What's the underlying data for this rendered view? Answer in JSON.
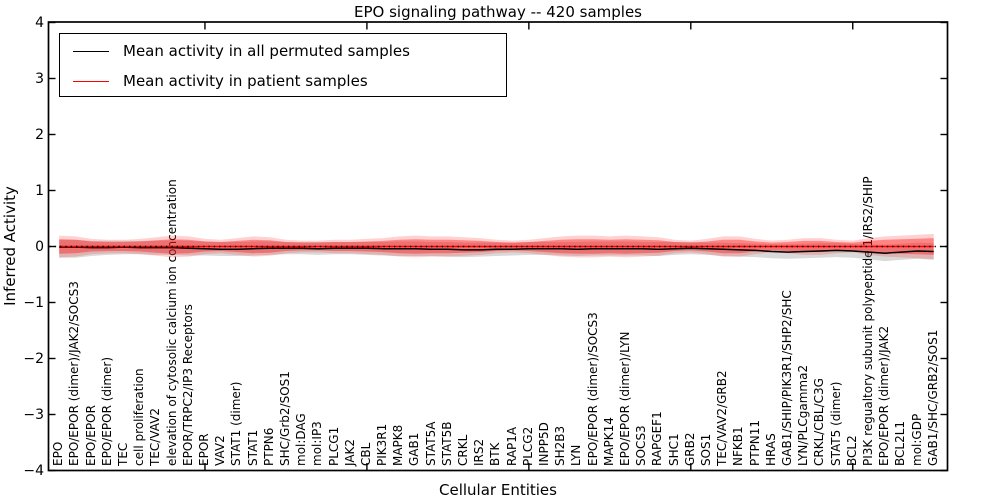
{
  "title": "EPO signaling pathway -- 420 samples",
  "axes": {
    "ylabel": "Inferred Activity",
    "xlabel": "Cellular Entities"
  },
  "legend": {
    "items": [
      {
        "label": "Mean activity in all permuted samples",
        "color": "#000000"
      },
      {
        "label": "Mean activity in patient samples",
        "color": "#ff0000"
      }
    ]
  },
  "colors": {
    "black_line": "#000000",
    "red_line": "#ff0000",
    "red_band": "rgba(255,0,0,0.36)",
    "red_band_outer": "rgba(255,0,0,0.18)",
    "gray_band": "rgba(130,130,130,0.30)",
    "zero_line": "#000000"
  },
  "chart_data": {
    "type": "line",
    "title": "EPO signaling pathway -- 420 samples",
    "xlabel": "Cellular Entities",
    "ylabel": "Inferred Activity",
    "ylim": [
      -4,
      4
    ],
    "yticks": [
      4,
      3,
      2,
      1,
      0,
      -1,
      -2,
      -3,
      -4
    ],
    "xtick_indices": [
      9,
      19,
      29,
      39,
      49
    ],
    "grid": false,
    "legend_position": "upper left",
    "zero_line": true,
    "categories": [
      "EPO",
      "EPO/EPOR (dimer)/JAK2/SOCS3",
      "EPO/EPOR",
      "EPO/EPOR (dimer)",
      "TEC",
      "cell proliferation",
      "TEC/VAV2",
      "elevation of cytosolic calcium ion concentration",
      "EPOR/TRPC2/IP3 Receptors",
      "EPOR",
      "VAV2",
      "STAT1 (dimer)",
      "STAT1",
      "PTPN6",
      "SHC/Grb2/SOS1",
      "mol:DAG",
      "mol:IP3",
      "PLCG1",
      "JAK2",
      "CBL",
      "PIK3R1",
      "MAPK8",
      "GAB1",
      "STAT5A",
      "STAT5B",
      "CRKL",
      "IRS2",
      "BTK",
      "RAP1A",
      "PLCG2",
      "INPP5D",
      "SH2B3",
      "LYN",
      "EPO/EPOR (dimer)/SOCS3",
      "MAPK14",
      "EPO/EPOR (dimer)/LYN",
      "SOCS3",
      "RAPGEF1",
      "SHC1",
      "GRB2",
      "SOS1",
      "TEC/VAV2/GRB2",
      "NFKB1",
      "PTPN11",
      "HRAS",
      "GAB1/SHIP/PIK3R1/SHP2/SHC",
      "LYN/PLCgamma2",
      "CRKL/CBL/C3G",
      "STAT5 (dimer)",
      "BCL2",
      "PI3K regualtory subunit polypeptide 1/IRS2/SHIP",
      "EPO/EPOR (dimer)/JAK2",
      "BCL2L1",
      "mol:GDP",
      "GAB1/SHC/GRB2/SOS1"
    ],
    "series": [
      {
        "name": "Mean activity in all permuted samples",
        "color": "#000000",
        "values": [
          -0.01,
          -0.01,
          -0.02,
          -0.02,
          -0.01,
          -0.02,
          -0.02,
          -0.02,
          -0.03,
          -0.04,
          -0.05,
          -0.05,
          -0.04,
          -0.03,
          -0.03,
          -0.03,
          -0.04,
          -0.03,
          -0.03,
          -0.03,
          -0.04,
          -0.04,
          -0.04,
          -0.05,
          -0.05,
          -0.06,
          -0.06,
          -0.05,
          -0.05,
          -0.04,
          -0.04,
          -0.04,
          -0.05,
          -0.04,
          -0.04,
          -0.04,
          -0.04,
          -0.05,
          -0.04,
          -0.03,
          -0.04,
          -0.05,
          -0.06,
          -0.07,
          -0.09,
          -0.1,
          -0.09,
          -0.08,
          -0.07,
          -0.08,
          -0.1,
          -0.12,
          -0.1,
          -0.08,
          -0.09
        ],
        "band_upper": [
          0.12,
          0.12,
          0.1,
          0.1,
          0.1,
          0.1,
          0.1,
          0.11,
          0.1,
          0.09,
          0.08,
          0.08,
          0.09,
          0.09,
          0.08,
          0.08,
          0.08,
          0.08,
          0.08,
          0.08,
          0.08,
          0.09,
          0.09,
          0.08,
          0.08,
          0.07,
          0.07,
          0.07,
          0.07,
          0.08,
          0.08,
          0.08,
          0.08,
          0.09,
          0.09,
          0.09,
          0.08,
          0.08,
          0.08,
          0.08,
          0.07,
          0.07,
          0.06,
          0.05,
          0.04,
          0.04,
          0.05,
          0.06,
          0.06,
          0.05,
          0.04,
          0.03,
          0.05,
          0.07,
          0.06
        ],
        "band_lower": [
          -0.2,
          -0.2,
          -0.17,
          -0.15,
          -0.14,
          -0.14,
          -0.15,
          -0.15,
          -0.16,
          -0.16,
          -0.17,
          -0.17,
          -0.16,
          -0.15,
          -0.14,
          -0.14,
          -0.15,
          -0.14,
          -0.14,
          -0.15,
          -0.16,
          -0.17,
          -0.17,
          -0.17,
          -0.18,
          -0.19,
          -0.18,
          -0.17,
          -0.16,
          -0.15,
          -0.15,
          -0.16,
          -0.17,
          -0.16,
          -0.16,
          -0.16,
          -0.16,
          -0.17,
          -0.15,
          -0.14,
          -0.15,
          -0.17,
          -0.18,
          -0.19,
          -0.21,
          -0.22,
          -0.21,
          -0.2,
          -0.19,
          -0.2,
          -0.23,
          -0.26,
          -0.24,
          -0.22,
          -0.24
        ]
      },
      {
        "name": "Mean activity in patient samples",
        "color": "#ff0000",
        "values": [
          0,
          0,
          0,
          0,
          0,
          0,
          0,
          0,
          0,
          0,
          0,
          0,
          0,
          0,
          0,
          0,
          0,
          0,
          0,
          0,
          0,
          0,
          0,
          0,
          0,
          0,
          0,
          0,
          0,
          0,
          0,
          0,
          0,
          0,
          0,
          0,
          0,
          0,
          0,
          0,
          0,
          0,
          0,
          0,
          0,
          0,
          0,
          0,
          0,
          0,
          0,
          0,
          0,
          0,
          0
        ],
        "band_upper": [
          0.13,
          0.12,
          0.09,
          0.08,
          0.08,
          0.09,
          0.11,
          0.13,
          0.12,
          0.09,
          0.08,
          0.1,
          0.12,
          0.11,
          0.08,
          0.07,
          0.07,
          0.08,
          0.08,
          0.09,
          0.1,
          0.12,
          0.13,
          0.12,
          0.12,
          0.11,
          0.1,
          0.08,
          0.07,
          0.08,
          0.1,
          0.12,
          0.13,
          0.13,
          0.12,
          0.13,
          0.12,
          0.11,
          0.08,
          0.07,
          0.09,
          0.12,
          0.12,
          0.09,
          0.07,
          0.08,
          0.1,
          0.1,
          0.08,
          0.07,
          0.1,
          0.12,
          0.13,
          0.14,
          0.15
        ],
        "band_lower": [
          -0.13,
          -0.12,
          -0.09,
          -0.08,
          -0.08,
          -0.09,
          -0.11,
          -0.13,
          -0.12,
          -0.09,
          -0.08,
          -0.1,
          -0.12,
          -0.11,
          -0.08,
          -0.07,
          -0.07,
          -0.08,
          -0.08,
          -0.09,
          -0.1,
          -0.12,
          -0.13,
          -0.12,
          -0.12,
          -0.11,
          -0.1,
          -0.08,
          -0.07,
          -0.08,
          -0.1,
          -0.12,
          -0.13,
          -0.13,
          -0.12,
          -0.13,
          -0.12,
          -0.11,
          -0.08,
          -0.07,
          -0.09,
          -0.12,
          -0.12,
          -0.09,
          -0.07,
          -0.08,
          -0.1,
          -0.1,
          -0.08,
          -0.07,
          -0.1,
          -0.12,
          -0.13,
          -0.14,
          -0.15
        ]
      }
    ]
  }
}
